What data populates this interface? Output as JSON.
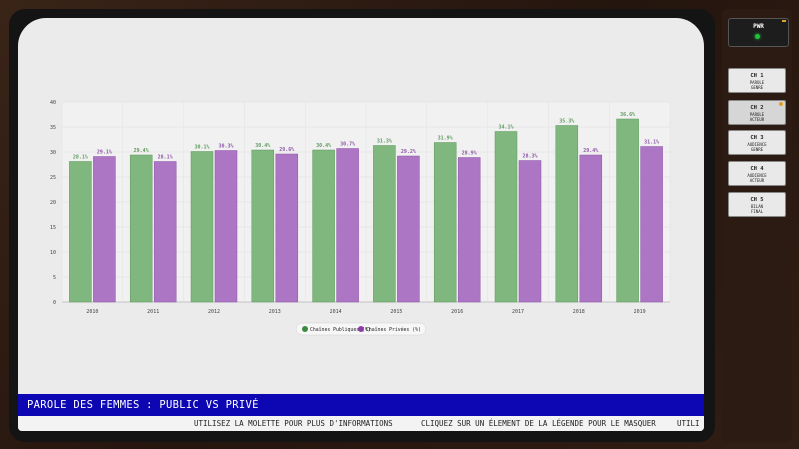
{
  "ticker": {
    "title": "PAROLE DES FEMMES : PUBLIC VS PRIVÉ",
    "messages": [
      "UTILISEZ LA MOLETTE POUR PLUS D'INFORMATIONS",
      "CLIQUEZ SUR UN ÉLEMENT DE LA LÉGENDE POUR LE MASQUER",
      "UTILI"
    ]
  },
  "tv": {
    "power_label": "PWR"
  },
  "channels": [
    {
      "num": "CH 1",
      "label": "PAROLE\nGENRE",
      "active": false
    },
    {
      "num": "CH 2",
      "label": "PAROLE\nACTEUR",
      "active": true
    },
    {
      "num": "CH 3",
      "label": "AUDIENCE\nGENRE",
      "active": false
    },
    {
      "num": "CH 4",
      "label": "AUDIENCE\nACTEUR",
      "active": false
    },
    {
      "num": "CH 5",
      "label": "BILAN\nFINAL",
      "active": false
    }
  ],
  "chart_data": {
    "type": "bar",
    "categories": [
      "2010",
      "2011",
      "2012",
      "2013",
      "2014",
      "2015",
      "2016",
      "2017",
      "2018",
      "2019"
    ],
    "series": [
      {
        "name": "Chaînes Publiques (%)",
        "color": "#7fb77e",
        "stroke": "#5e9a5d",
        "legend_color": "#3d8a3c",
        "values": [
          28.1,
          29.4,
          30.1,
          30.4,
          30.4,
          31.3,
          31.9,
          34.1,
          35.3,
          36.6
        ],
        "labels": [
          "28.1%",
          "29.4%",
          "30.1%",
          "30.4%",
          "30.4%",
          "31.3%",
          "31.9%",
          "34.1%",
          "35.3%",
          "36.6%"
        ]
      },
      {
        "name": "Chaînes Privées (%)",
        "color": "#ac76c4",
        "stroke": "#8e57a8",
        "legend_color": "#8a3dab",
        "values": [
          29.1,
          28.1,
          30.3,
          29.6,
          30.7,
          29.2,
          28.9,
          28.3,
          29.4,
          31.1
        ],
        "labels": [
          "29.1%",
          "28.1%",
          "30.3%",
          "29.6%",
          "30.7%",
          "29.2%",
          "28.9%",
          "28.3%",
          "29.4%",
          "31.1%"
        ]
      }
    ],
    "y_ticks": [
      0,
      5,
      10,
      15,
      20,
      25,
      30,
      35,
      40
    ],
    "ylim": [
      0,
      40
    ],
    "grid": true,
    "legend_placement": "bottom-center"
  }
}
